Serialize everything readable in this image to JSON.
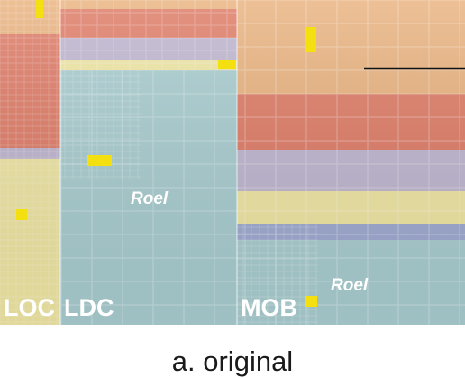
{
  "labels": {
    "loc": "LOC",
    "ldc": "LDC",
    "mob": "MOB",
    "roel_ldc": "Roel",
    "roel_mob": "Roel"
  },
  "caption": "a. original",
  "colors": {
    "orange": "#e9b27e",
    "red": "#df7b66",
    "lavender": "#bfb6d0",
    "yellow": "#efe6a3",
    "teal": "#a9cdd0",
    "highlight": "#f4e011",
    "blue_band": "#9eaad1",
    "pointer": "#111111"
  }
}
